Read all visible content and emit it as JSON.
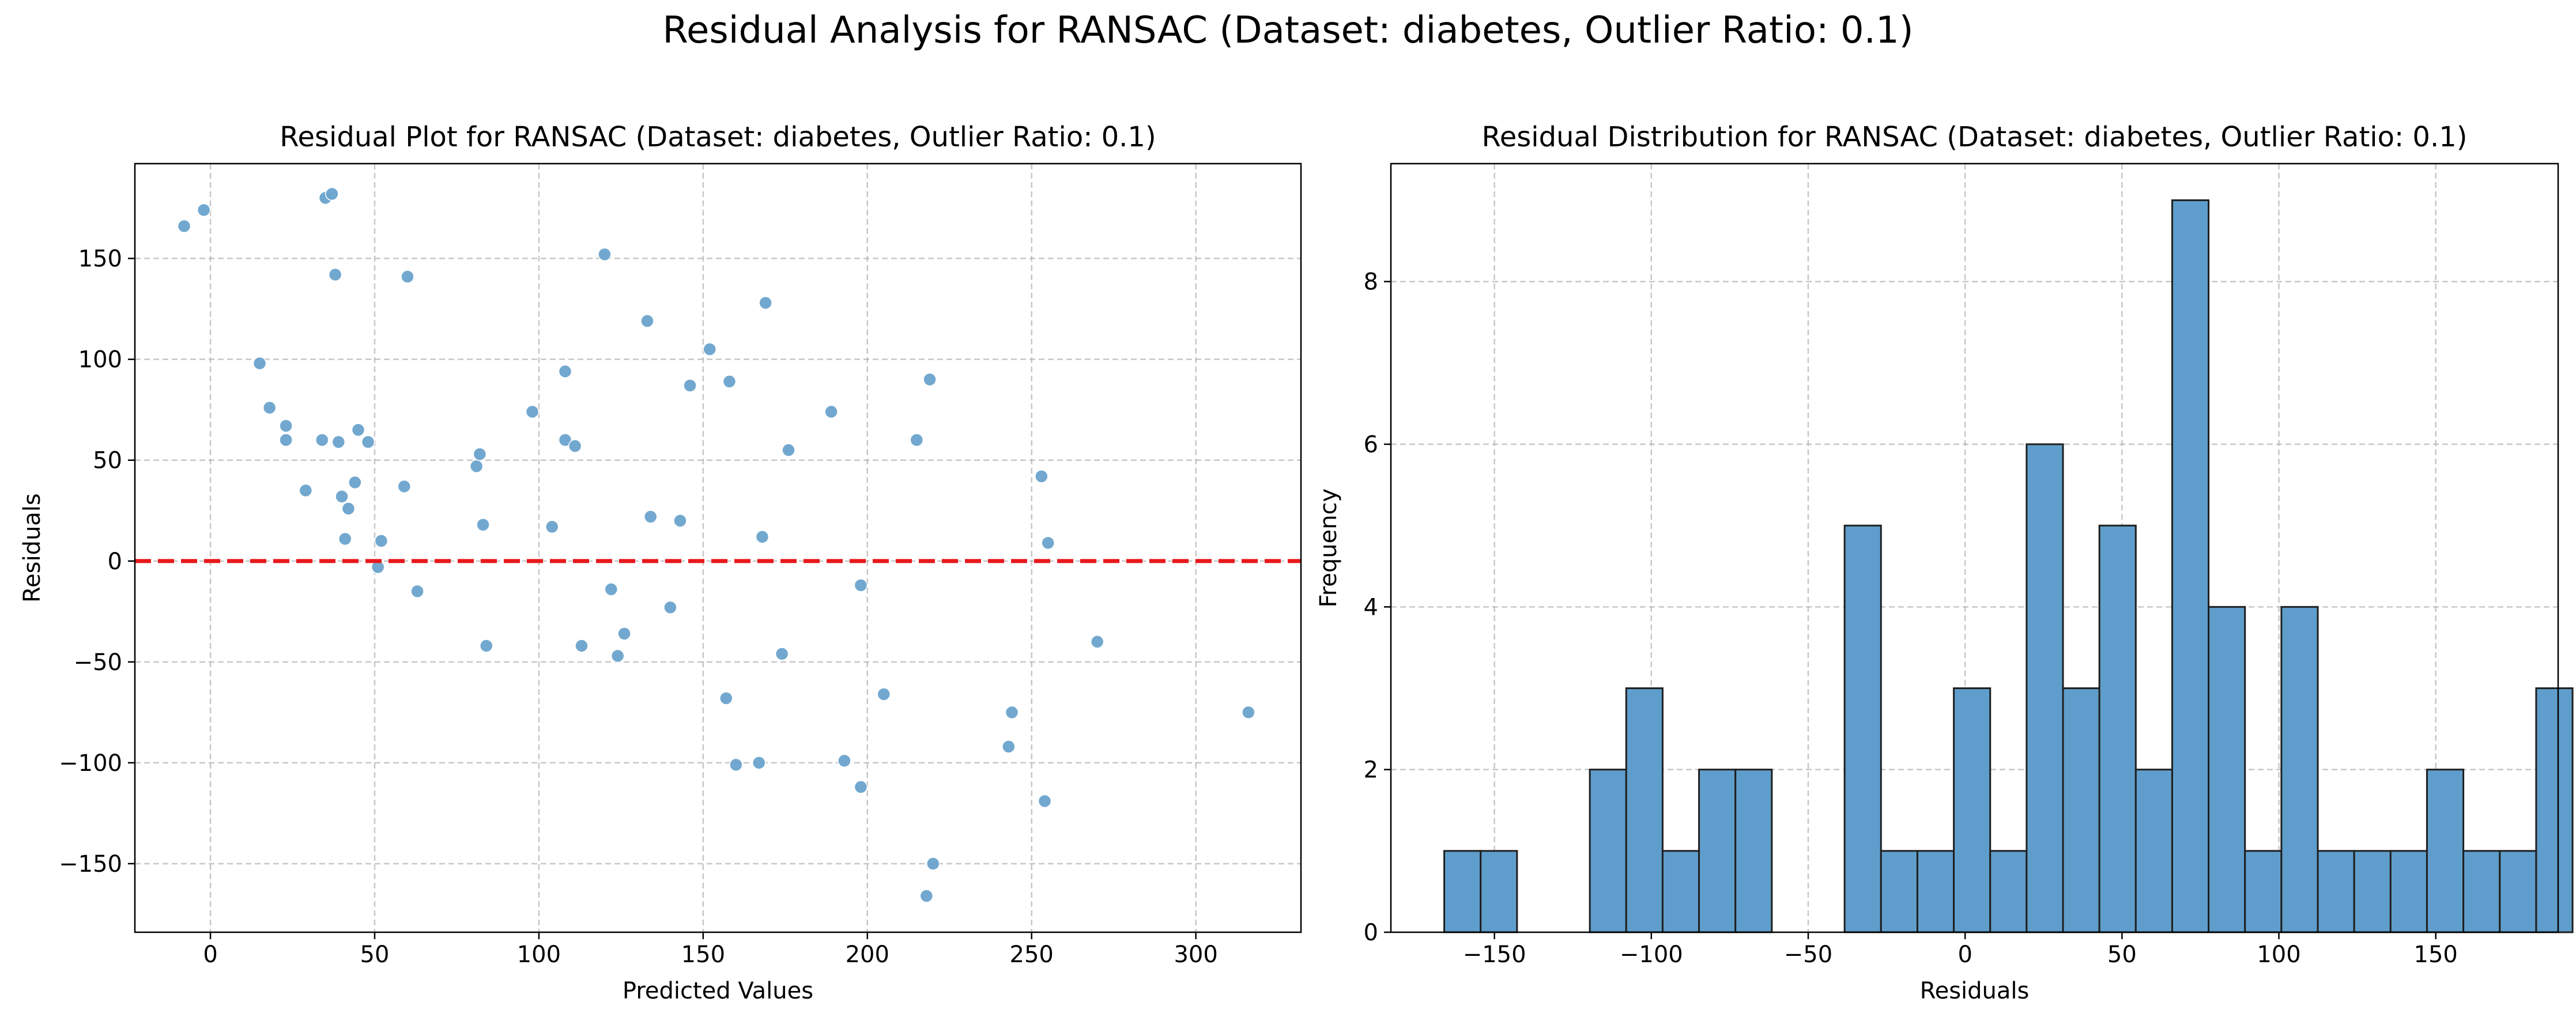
{
  "figure": {
    "suptitle": "Residual Analysis for RANSAC (Dataset: diabetes, Outlier Ratio: 0.1)"
  },
  "chart_data": [
    {
      "type": "scatter",
      "title": "Residual Plot for RANSAC (Dataset: diabetes, Outlier Ratio: 0.1)",
      "xlabel": "Predicted Values",
      "ylabel": "Residuals",
      "xlim": [
        -23,
        332
      ],
      "ylim": [
        -184,
        197
      ],
      "xticks": [
        0,
        50,
        100,
        150,
        200,
        250,
        300
      ],
      "yticks": [
        -150,
        -100,
        -50,
        0,
        50,
        100,
        150
      ],
      "grid": true,
      "point_color": "#6aa3cc",
      "reference_line": {
        "y": 0,
        "color": "#e8191c",
        "style": "dashed"
      },
      "points": [
        [
          -8,
          166
        ],
        [
          -2,
          174
        ],
        [
          15,
          98
        ],
        [
          18,
          76
        ],
        [
          23,
          67
        ],
        [
          23,
          60
        ],
        [
          29,
          35
        ],
        [
          34,
          60
        ],
        [
          35,
          180
        ],
        [
          37,
          182
        ],
        [
          38,
          142
        ],
        [
          39,
          59
        ],
        [
          40,
          32
        ],
        [
          41,
          11
        ],
        [
          42,
          26
        ],
        [
          44,
          39
        ],
        [
          45,
          65
        ],
        [
          48,
          59
        ],
        [
          51,
          -3
        ],
        [
          52,
          10
        ],
        [
          59,
          37
        ],
        [
          60,
          141
        ],
        [
          63,
          -15
        ],
        [
          81,
          47
        ],
        [
          82,
          53
        ],
        [
          83,
          18
        ],
        [
          84,
          -42
        ],
        [
          98,
          74
        ],
        [
          104,
          17
        ],
        [
          108,
          94
        ],
        [
          108,
          60
        ],
        [
          111,
          57
        ],
        [
          113,
          -42
        ],
        [
          120,
          152
        ],
        [
          122,
          -14
        ],
        [
          124,
          -47
        ],
        [
          126,
          -36
        ],
        [
          133,
          119
        ],
        [
          134,
          22
        ],
        [
          140,
          -23
        ],
        [
          143,
          20
        ],
        [
          146,
          87
        ],
        [
          152,
          105
        ],
        [
          157,
          -68
        ],
        [
          158,
          89
        ],
        [
          160,
          -101
        ],
        [
          167,
          -100
        ],
        [
          168,
          12
        ],
        [
          169,
          128
        ],
        [
          174,
          -46
        ],
        [
          176,
          55
        ],
        [
          189,
          74
        ],
        [
          193,
          -99
        ],
        [
          198,
          -12
        ],
        [
          198,
          -112
        ],
        [
          205,
          -66
        ],
        [
          215,
          60
        ],
        [
          218,
          -166
        ],
        [
          219,
          90
        ],
        [
          220,
          -150
        ],
        [
          243,
          -92
        ],
        [
          244,
          -75
        ],
        [
          253,
          42
        ],
        [
          254,
          -119
        ],
        [
          255,
          9
        ],
        [
          270,
          -40
        ],
        [
          316,
          -75
        ]
      ]
    },
    {
      "type": "bar",
      "subtype": "histogram",
      "title": "Residual Distribution for RANSAC (Dataset: diabetes, Outlier Ratio: 0.1)",
      "xlabel": "Residuals",
      "ylabel": "Frequency",
      "xlim": [
        -183,
        189
      ],
      "ylim": [
        0,
        9.45
      ],
      "xticks": [
        -150,
        -100,
        -50,
        0,
        50,
        100,
        150
      ],
      "yticks": [
        0,
        2,
        4,
        6,
        8
      ],
      "grid": true,
      "bar_color": "#5f9ecc",
      "edge_color": "#1f1f1f",
      "bin_start": -166,
      "bin_width": 11.6,
      "counts": [
        1,
        1,
        0,
        0,
        2,
        3,
        1,
        2,
        2,
        0,
        0,
        5,
        1,
        1,
        3,
        1,
        6,
        3,
        5,
        2,
        9,
        4,
        1,
        4,
        1,
        1,
        1,
        2,
        1,
        1,
        3
      ]
    }
  ]
}
